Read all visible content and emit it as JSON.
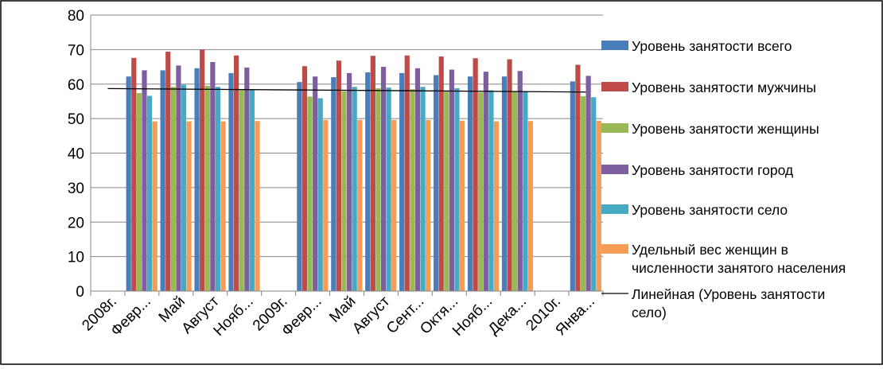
{
  "chart_data": {
    "type": "bar",
    "title": "",
    "xlabel": "",
    "ylabel": "",
    "ylim": [
      0,
      80
    ],
    "yticks": [
      0,
      10,
      20,
      30,
      40,
      50,
      60,
      70,
      80
    ],
    "grid": true,
    "legend_position": "right",
    "categories": [
      "2008г.",
      "Февр...",
      "Май",
      "Август",
      "Нояб...",
      "2009г.",
      "Февр...",
      "Май",
      "Август",
      "Сент...",
      "Октя...",
      "Нояб...",
      "Дека...",
      "2010г.",
      "Янва..."
    ],
    "series": [
      {
        "name": "Уровень занятости всего",
        "color": "#4a7ebb",
        "values": [
          null,
          62.2,
          64.0,
          64.6,
          63.2,
          null,
          60.6,
          62.0,
          63.4,
          63.2,
          62.6,
          62.2,
          62.2,
          null,
          60.8
        ]
      },
      {
        "name": "Уровень занятости мужчины",
        "color": "#be4b48",
        "values": [
          null,
          67.6,
          69.4,
          70.0,
          68.3,
          null,
          65.2,
          66.8,
          68.2,
          68.3,
          68.0,
          67.5,
          67.2,
          null,
          65.6
        ]
      },
      {
        "name": "Уровень занятости женщины",
        "color": "#98b954",
        "values": [
          null,
          57.4,
          59.2,
          59.5,
          58.3,
          null,
          56.4,
          57.9,
          58.8,
          58.5,
          57.8,
          57.6,
          57.8,
          null,
          56.5
        ]
      },
      {
        "name": "Уровень занятости город",
        "color": "#7d5fa0",
        "values": [
          null,
          64.0,
          65.4,
          66.4,
          64.8,
          null,
          62.2,
          63.2,
          65.0,
          64.6,
          64.2,
          63.6,
          63.8,
          null,
          62.4
        ]
      },
      {
        "name": "Уровень занятости село",
        "color": "#46aac5",
        "values": [
          null,
          56.6,
          59.8,
          59.2,
          58.4,
          null,
          55.9,
          59.2,
          59.0,
          59.2,
          58.8,
          58.2,
          57.9,
          null,
          56.2
        ]
      },
      {
        "name": "Удельный вес женщин в численности занятого населения",
        "color": "#f59d56",
        "values": [
          null,
          49.2,
          49.2,
          49.2,
          49.3,
          null,
          49.6,
          49.6,
          49.6,
          49.6,
          49.4,
          49.2,
          49.3,
          null,
          49.4
        ]
      }
    ],
    "trendline": {
      "name": "Линейная (Уровень занятости село)",
      "color": "#000000",
      "start": 58.7,
      "end": 57.7
    },
    "legend_lines": [
      [
        "Уровень занятости всего"
      ],
      [
        "Уровень занятости мужчины"
      ],
      [
        "Уровень занятости женщины"
      ],
      [
        "Уровень занятости город"
      ],
      [
        "Уровень занятости село"
      ],
      [
        "Удельный вес женщин в",
        "численности занятого населения"
      ],
      [
        "Линейная (Уровень занятости",
        "село)"
      ]
    ]
  }
}
